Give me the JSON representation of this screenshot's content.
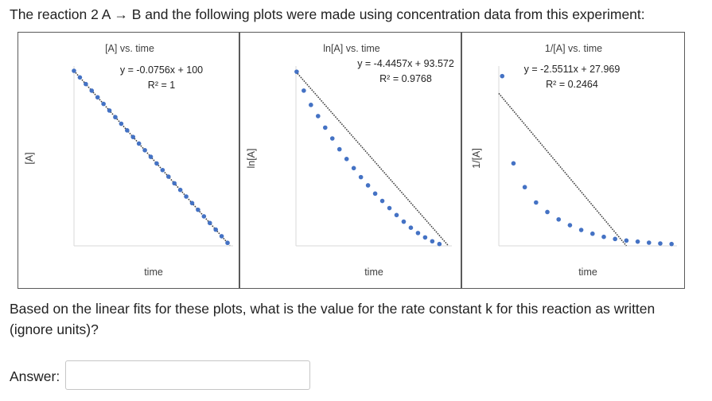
{
  "question": {
    "intro": "The reaction 2 A → B and the following plots were made using concentration data from this experiment:",
    "prompt": "Based on the linear fits for these plots, what is the value for the rate constant k for this reaction as written (ignore units)?",
    "answer_label": "Answer:",
    "answer_value": ""
  },
  "colors": {
    "points": "#4472c4",
    "trendline": "#404040",
    "axes": "#d9d9d9"
  },
  "chart_data": [
    {
      "type": "scatter",
      "title": "[A] vs. time",
      "xlabel": "time",
      "ylabel": "[A]",
      "equation": "y = -0.0756x + 100",
      "r_squared": "R² = 1",
      "xlim": [
        0,
        1320
      ],
      "ylim": [
        0,
        100
      ],
      "x": [
        0,
        50,
        100,
        150,
        200,
        250,
        300,
        350,
        400,
        450,
        500,
        550,
        600,
        650,
        700,
        750,
        800,
        850,
        900,
        950,
        1000,
        1050,
        1100,
        1150,
        1200,
        1250,
        1300
      ],
      "y": [
        100,
        96.22,
        92.44,
        88.66,
        84.88,
        81.1,
        77.32,
        73.54,
        69.76,
        65.98,
        62.2,
        58.42,
        54.64,
        50.86,
        47.08,
        43.3,
        39.52,
        35.74,
        31.96,
        28.18,
        24.4,
        20.62,
        16.84,
        13.06,
        9.28,
        5.5,
        1.72
      ],
      "trendline": {
        "slope": -0.0756,
        "intercept": 100
      },
      "grid": false
    },
    {
      "type": "scatter",
      "title": "ln[A] vs. time",
      "xlabel": "time",
      "ylabel": "ln[A]",
      "equation": "y = -4.4457x + 93.572",
      "r_squared": "R² = 0.9768",
      "xlim": [
        -0.1,
        21.3
      ],
      "ylim": [
        -1.0,
        94.5
      ],
      "x": [
        0,
        1,
        2,
        3,
        4,
        5,
        6,
        7,
        8,
        9,
        10,
        11,
        12,
        13,
        14,
        15,
        16,
        17,
        18,
        19,
        20
      ],
      "y": [
        94.0,
        83.7,
        75.9,
        69.8,
        63.5,
        57.6,
        51.7,
        46.4,
        41.4,
        36.5,
        32.0,
        27.5,
        23.5,
        19.6,
        15.8,
        12.2,
        8.9,
        6.0,
        3.6,
        1.5,
        0.0
      ],
      "trendline": {
        "slope": -4.4457,
        "intercept": 93.572
      },
      "grid": false
    },
    {
      "type": "scatter",
      "title": "1/[A] vs. time",
      "xlabel": "time",
      "ylabel": "1/[A]",
      "equation": "y = -2.5511x + 27.969",
      "r_squared": "R² = 0.2464",
      "xlim": [
        -0.3,
        15.2
      ],
      "ylim": [
        -0.1,
        33.0
      ],
      "x": [
        0,
        1,
        2,
        3,
        4,
        5,
        6,
        7,
        8,
        9,
        10,
        11,
        12,
        13,
        14,
        15
      ],
      "y": [
        32.0,
        15.5,
        11.0,
        8.1,
        6.3,
        4.9,
        3.8,
        2.9,
        2.2,
        1.6,
        1.2,
        0.9,
        0.7,
        0.5,
        0.35,
        0.25
      ],
      "trendline": {
        "slope": -2.5511,
        "intercept": 27.969
      },
      "grid": false
    }
  ]
}
